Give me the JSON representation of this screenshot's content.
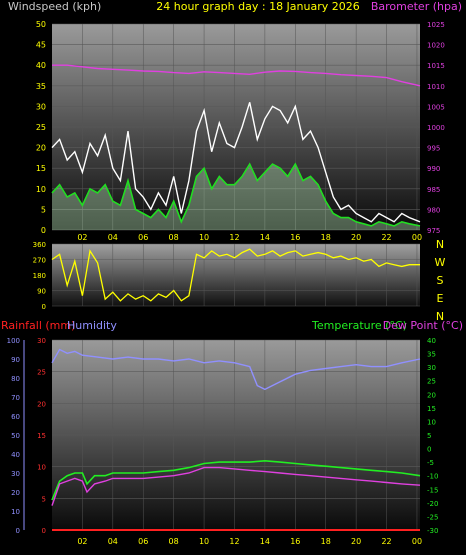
{
  "header": {
    "left_title": "Windspeed (kph)",
    "center_title": "24 hour graph day : 18 January 2026",
    "right_title": "Barometer (hpa)"
  },
  "colors": {
    "background": "#000000",
    "wind_title": "#c8c8c8",
    "center_title": "#ffff00",
    "barometer": "#e040e0",
    "wind_gust": "#ffffff",
    "wind_avg": "#22dd22",
    "wind_fill": "#ccffcc",
    "direction": "#ffff00",
    "rainfall": "#ff2020",
    "humidity": "#9090ff",
    "temperature": "#22ee22",
    "dewpoint": "#e040e0",
    "axis_tick_left": "#ffff00",
    "axis_tick_left_lower": "#ff3030"
  },
  "chart_data": [
    {
      "type": "line",
      "name": "wind-barometer",
      "x_ticks": [
        "02",
        "04",
        "06",
        "08",
        "10",
        "12",
        "14",
        "16",
        "18",
        "20",
        "22",
        "00"
      ],
      "x_range_hours": [
        0,
        24.2
      ],
      "y_left": {
        "label": "Windspeed (kph)",
        "ticks": [
          0,
          5,
          10,
          15,
          20,
          25,
          30,
          35,
          40,
          45,
          50
        ],
        "range": [
          0,
          50
        ]
      },
      "y_right": {
        "label": "Barometer (hpa)",
        "ticks": [
          975,
          980,
          985,
          990,
          995,
          1000,
          1005,
          1010,
          1015,
          1020,
          1025
        ],
        "range": [
          975,
          1025
        ]
      },
      "series": [
        {
          "name": "Barometer (hpa)",
          "x": [
            0,
            1,
            2,
            3,
            4,
            5,
            6,
            7,
            8,
            9,
            10,
            11,
            12,
            13,
            14,
            15,
            16,
            17,
            18,
            19,
            20,
            21,
            22,
            23,
            24.2
          ],
          "y": [
            1015,
            1015,
            1014.6,
            1014.2,
            1014,
            1013.8,
            1013.6,
            1013.5,
            1013.2,
            1013,
            1013.4,
            1013.2,
            1013,
            1012.8,
            1013.3,
            1013.6,
            1013.5,
            1013.2,
            1013,
            1012.7,
            1012.5,
            1012.3,
            1012,
            1011,
            1010
          ]
        },
        {
          "name": "Gust",
          "x": [
            0,
            0.5,
            1,
            1.5,
            2,
            2.5,
            3,
            3.5,
            4,
            4.5,
            5,
            5.5,
            6,
            6.5,
            7,
            7.5,
            8,
            8.5,
            9,
            9.5,
            10,
            10.5,
            11,
            11.5,
            12,
            12.5,
            13,
            13.5,
            14,
            14.5,
            15,
            15.5,
            16,
            16.5,
            17,
            17.5,
            18,
            18.5,
            19,
            19.5,
            20,
            20.5,
            21,
            21.5,
            22,
            22.5,
            23,
            23.5,
            24.2
          ],
          "y": [
            20,
            22,
            17,
            19,
            14,
            21,
            18,
            23,
            15,
            12,
            24,
            10,
            8,
            5,
            9,
            6,
            13,
            4,
            12,
            24,
            29,
            19,
            26,
            21,
            20,
            25,
            31,
            22,
            27,
            30,
            29,
            26,
            30,
            22,
            24,
            20,
            14,
            8,
            5,
            6,
            4,
            3,
            2,
            4,
            3,
            2,
            4,
            3,
            2
          ]
        },
        {
          "name": "Average",
          "x": [
            0,
            0.5,
            1,
            1.5,
            2,
            2.5,
            3,
            3.5,
            4,
            4.5,
            5,
            5.5,
            6,
            6.5,
            7,
            7.5,
            8,
            8.5,
            9,
            9.5,
            10,
            10.5,
            11,
            11.5,
            12,
            12.5,
            13,
            13.5,
            14,
            14.5,
            15,
            15.5,
            16,
            16.5,
            17,
            17.5,
            18,
            18.5,
            19,
            19.5,
            20,
            20.5,
            21,
            21.5,
            22,
            22.5,
            23,
            23.5,
            24.2
          ],
          "y": [
            9,
            11,
            8,
            9,
            6,
            10,
            9,
            11,
            7,
            6,
            12,
            5,
            4,
            3,
            5,
            3,
            7,
            2,
            6,
            13,
            15,
            10,
            13,
            11,
            11,
            13,
            16,
            12,
            14,
            16,
            15,
            13,
            16,
            12,
            13,
            11,
            7,
            4,
            3,
            3,
            2,
            1.5,
            1,
            2,
            1.5,
            1,
            2,
            1.5,
            1
          ]
        }
      ]
    },
    {
      "type": "line",
      "name": "wind-direction",
      "x_range_hours": [
        0,
        24.2
      ],
      "y_left": {
        "ticks": [
          0,
          90,
          180,
          270,
          360
        ],
        "range": [
          0,
          360
        ]
      },
      "compass_labels": [
        "N",
        "W",
        "S",
        "E",
        "N"
      ],
      "series": [
        {
          "name": "Direction",
          "x": [
            0,
            0.5,
            1,
            1.5,
            2,
            2.5,
            3,
            3.5,
            4,
            4.5,
            5,
            5.5,
            6,
            6.5,
            7,
            7.5,
            8,
            8.5,
            9,
            9.5,
            10,
            10.5,
            11,
            11.5,
            12,
            12.5,
            13,
            13.5,
            14,
            14.5,
            15,
            15.5,
            16,
            16.5,
            17,
            17.5,
            18,
            18.5,
            19,
            19.5,
            20,
            20.5,
            21,
            21.5,
            22,
            22.5,
            23,
            23.5,
            24.2
          ],
          "y": [
            270,
            300,
            120,
            260,
            60,
            320,
            250,
            40,
            80,
            30,
            70,
            40,
            60,
            30,
            70,
            50,
            90,
            30,
            60,
            300,
            280,
            320,
            290,
            300,
            280,
            310,
            330,
            290,
            300,
            320,
            290,
            310,
            320,
            290,
            300,
            310,
            300,
            280,
            290,
            270,
            280,
            260,
            270,
            230,
            250,
            240,
            230,
            240,
            240
          ]
        }
      ]
    },
    {
      "type": "line",
      "name": "temp-humidity-rain",
      "x_ticks": [
        "02",
        "04",
        "06",
        "08",
        "10",
        "12",
        "14",
        "16",
        "18",
        "20",
        "22",
        "00"
      ],
      "x_range_hours": [
        0,
        24.2
      ],
      "y_left_outer": {
        "label": "Humidity",
        "ticks": [
          0,
          10,
          20,
          30,
          40,
          50,
          60,
          70,
          80,
          90,
          100
        ],
        "range": [
          0,
          100
        ]
      },
      "y_left_inner": {
        "label": "Rainfall (mm)",
        "ticks": [
          0,
          5,
          10,
          15,
          20,
          25,
          30
        ],
        "range": [
          0,
          30
        ]
      },
      "y_right": {
        "label": "Temperature (°C)",
        "ticks": [
          -30,
          -25,
          -20,
          -15,
          -10,
          -5,
          0,
          5,
          10,
          15,
          20,
          25,
          30,
          35,
          40
        ],
        "range": [
          -30,
          40
        ]
      },
      "right_title_2": "Dew Point (°C)",
      "series": [
        {
          "name": "Humidity",
          "x": [
            0,
            0.5,
            1,
            1.5,
            2,
            3,
            4,
            5,
            6,
            7,
            8,
            9,
            10,
            11,
            12,
            13,
            13.5,
            14,
            15,
            16,
            17,
            18,
            19,
            20,
            21,
            22,
            23,
            24.2
          ],
          "y": [
            88,
            95,
            93,
            94,
            92,
            91,
            90,
            91,
            90,
            90,
            89,
            90,
            88,
            89,
            88,
            86,
            76,
            74,
            78,
            82,
            84,
            85,
            86,
            87,
            86,
            86,
            88,
            90
          ]
        },
        {
          "name": "Temperature (°C)",
          "x": [
            0,
            0.5,
            1,
            1.5,
            2,
            2.3,
            2.8,
            3.5,
            4,
            5,
            6,
            7,
            8,
            9,
            10,
            11,
            12,
            13,
            14,
            15,
            16,
            17,
            18,
            19,
            20,
            21,
            22,
            23,
            24.2
          ],
          "y": [
            -19,
            -12,
            -10,
            -9,
            -9,
            -13,
            -10,
            -10,
            -9,
            -9,
            -9,
            -8.5,
            -8,
            -7,
            -5.5,
            -5,
            -5,
            -5,
            -4.5,
            -5,
            -5.5,
            -6,
            -6.5,
            -7,
            -7.5,
            -8,
            -8.5,
            -9,
            -10
          ]
        },
        {
          "name": "Dew Point (°C)",
          "x": [
            0,
            0.5,
            1,
            1.5,
            2,
            2.3,
            2.8,
            3.5,
            4,
            5,
            6,
            7,
            8,
            9,
            10,
            11,
            12,
            13,
            14,
            15,
            16,
            17,
            18,
            19,
            20,
            21,
            22,
            23,
            24.2
          ],
          "y": [
            -21,
            -13,
            -12,
            -11,
            -12,
            -16,
            -13,
            -12,
            -11,
            -11,
            -11,
            -10.5,
            -10,
            -9,
            -7,
            -7,
            -7.5,
            -8,
            -8.5,
            -9,
            -9.5,
            -10,
            -10.5,
            -11,
            -11.5,
            -12,
            -12.5,
            -13,
            -13.5
          ]
        },
        {
          "name": "Rainfall (mm)",
          "x": [
            0,
            24.2
          ],
          "y": [
            0,
            0
          ]
        }
      ]
    }
  ],
  "sub_titles": {
    "rainfall": "Rainfall (mm)",
    "humidity": "Humidity",
    "temperature": "Temperature (°C)",
    "dewpoint": "Dew Point (°C)"
  }
}
